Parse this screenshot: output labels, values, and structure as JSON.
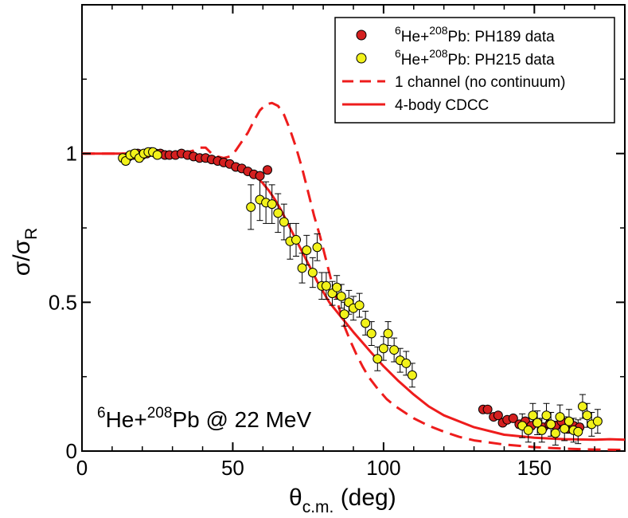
{
  "chart_data": {
    "type": "scatter",
    "title": "",
    "xlabel": "θc.m. (deg)",
    "ylabel": "σ/σR",
    "xlim": [
      0,
      180
    ],
    "ylim": [
      0,
      1.5
    ],
    "xticks": [
      {
        "value": 0,
        "label": "0"
      },
      {
        "value": 50,
        "label": "50"
      },
      {
        "value": 100,
        "label": "100"
      },
      {
        "value": 150,
        "label": "150"
      }
    ],
    "yticks": [
      {
        "value": 0,
        "label": "0"
      },
      {
        "value": 0.5,
        "label": "0.5"
      },
      {
        "value": 1,
        "label": "1"
      }
    ],
    "grid": false,
    "legend_position": "top-right",
    "legend": [
      {
        "kind": "marker",
        "prefix": "6",
        "mid": "He+",
        "sup": "208",
        "suffix": "Pb: PH189 data",
        "color": "#d42020"
      },
      {
        "kind": "marker",
        "prefix": "6",
        "mid": "He+",
        "sup": "208",
        "suffix": "Pb: PH215 data",
        "color": "#f2f21a"
      },
      {
        "kind": "dashed",
        "text": "1 channel (no continuum)",
        "color": "#ee1c1c"
      },
      {
        "kind": "solid",
        "text": "4-body CDCC",
        "color": "#ee1c1c"
      }
    ],
    "annotation": {
      "prefix": "6",
      "mid": "He+",
      "sup": "208",
      "suffix": "Pb @ 22 MeV"
    },
    "series": [
      {
        "name": "PH189 data",
        "kind": "points",
        "color": "#d42020",
        "points": [
          {
            "x": 15.5,
            "y": 0.99,
            "err": 0.006
          },
          {
            "x": 17,
            "y": 0.995,
            "err": 0.006
          },
          {
            "x": 18.5,
            "y": 1.0,
            "err": 0.006
          },
          {
            "x": 20,
            "y": 0.995,
            "err": 0.006
          },
          {
            "x": 21.5,
            "y": 1.0,
            "err": 0.006
          },
          {
            "x": 23,
            "y": 1.005,
            "err": 0.006
          },
          {
            "x": 24.5,
            "y": 1.0,
            "err": 0.006
          },
          {
            "x": 26,
            "y": 1.0,
            "err": 0.006
          },
          {
            "x": 27.5,
            "y": 0.995,
            "err": 0.006
          },
          {
            "x": 29,
            "y": 0.995,
            "err": 0.006
          },
          {
            "x": 31,
            "y": 0.995,
            "err": 0.006
          },
          {
            "x": 33,
            "y": 1.0,
            "err": 0.006
          },
          {
            "x": 35,
            "y": 0.995,
            "err": 0.006
          },
          {
            "x": 37,
            "y": 0.99,
            "err": 0.006
          },
          {
            "x": 39,
            "y": 0.985,
            "err": 0.006
          },
          {
            "x": 41,
            "y": 0.985,
            "err": 0.006
          },
          {
            "x": 43,
            "y": 0.98,
            "err": 0.006
          },
          {
            "x": 45,
            "y": 0.975,
            "err": 0.006
          },
          {
            "x": 47,
            "y": 0.97,
            "err": 0.006
          },
          {
            "x": 49,
            "y": 0.965,
            "err": 0.006
          },
          {
            "x": 51,
            "y": 0.955,
            "err": 0.006
          },
          {
            "x": 53,
            "y": 0.95,
            "err": 0.006
          },
          {
            "x": 55,
            "y": 0.94,
            "err": 0.006
          },
          {
            "x": 57,
            "y": 0.93,
            "err": 0.006
          },
          {
            "x": 59,
            "y": 0.925,
            "err": 0.006
          },
          {
            "x": 61.5,
            "y": 0.945,
            "err": 0.006
          },
          {
            "x": 133,
            "y": 0.14,
            "err": 0.006
          },
          {
            "x": 134.5,
            "y": 0.14,
            "err": 0.006
          },
          {
            "x": 136.5,
            "y": 0.115,
            "err": 0.008
          },
          {
            "x": 138,
            "y": 0.12,
            "err": 0.008
          },
          {
            "x": 139.5,
            "y": 0.095,
            "err": 0.01
          },
          {
            "x": 141,
            "y": 0.105,
            "err": 0.01
          },
          {
            "x": 143,
            "y": 0.11,
            "err": 0.01
          },
          {
            "x": 145,
            "y": 0.09,
            "err": 0.012
          },
          {
            "x": 147,
            "y": 0.1,
            "err": 0.012
          },
          {
            "x": 149,
            "y": 0.085,
            "err": 0.012
          },
          {
            "x": 151,
            "y": 0.095,
            "err": 0.012
          },
          {
            "x": 153,
            "y": 0.08,
            "err": 0.012
          },
          {
            "x": 155,
            "y": 0.09,
            "err": 0.012
          },
          {
            "x": 157,
            "y": 0.085,
            "err": 0.012
          },
          {
            "x": 159,
            "y": 0.1,
            "err": 0.012
          },
          {
            "x": 161,
            "y": 0.075,
            "err": 0.012
          },
          {
            "x": 163,
            "y": 0.085,
            "err": 0.012
          },
          {
            "x": 165,
            "y": 0.08,
            "err": 0.012
          }
        ]
      },
      {
        "name": "PH215 data",
        "kind": "points",
        "color": "#f2f21a",
        "points": [
          {
            "x": 13.5,
            "y": 0.985,
            "err": 0.012
          },
          {
            "x": 14.5,
            "y": 0.975,
            "err": 0.012
          },
          {
            "x": 16,
            "y": 0.995,
            "err": 0.012
          },
          {
            "x": 17.5,
            "y": 1.0,
            "err": 0.012
          },
          {
            "x": 19,
            "y": 0.985,
            "err": 0.012
          },
          {
            "x": 20.5,
            "y": 1.0,
            "err": 0.012
          },
          {
            "x": 22,
            "y": 1.005,
            "err": 0.012
          },
          {
            "x": 23.5,
            "y": 1.005,
            "err": 0.012
          },
          {
            "x": 25,
            "y": 0.995,
            "err": 0.012
          },
          {
            "x": 56,
            "y": 0.82,
            "err": 0.075
          },
          {
            "x": 59,
            "y": 0.845,
            "err": 0.07
          },
          {
            "x": 61,
            "y": 0.835,
            "err": 0.07
          },
          {
            "x": 63,
            "y": 0.83,
            "err": 0.065
          },
          {
            "x": 65,
            "y": 0.8,
            "err": 0.065
          },
          {
            "x": 67,
            "y": 0.77,
            "err": 0.06
          },
          {
            "x": 69,
            "y": 0.705,
            "err": 0.06
          },
          {
            "x": 71,
            "y": 0.71,
            "err": 0.055
          },
          {
            "x": 73,
            "y": 0.615,
            "err": 0.05
          },
          {
            "x": 74.5,
            "y": 0.675,
            "err": 0.05
          },
          {
            "x": 76.5,
            "y": 0.6,
            "err": 0.05
          },
          {
            "x": 78,
            "y": 0.685,
            "err": 0.045
          },
          {
            "x": 79.5,
            "y": 0.555,
            "err": 0.045
          },
          {
            "x": 81,
            "y": 0.555,
            "err": 0.045
          },
          {
            "x": 83,
            "y": 0.53,
            "err": 0.04
          },
          {
            "x": 84.5,
            "y": 0.55,
            "err": 0.04
          },
          {
            "x": 86,
            "y": 0.52,
            "err": 0.04
          },
          {
            "x": 87,
            "y": 0.46,
            "err": 0.04
          },
          {
            "x": 88.5,
            "y": 0.5,
            "err": 0.04
          },
          {
            "x": 90,
            "y": 0.48,
            "err": 0.04
          },
          {
            "x": 92,
            "y": 0.49,
            "err": 0.04
          },
          {
            "x": 94,
            "y": 0.43,
            "err": 0.04
          },
          {
            "x": 96,
            "y": 0.395,
            "err": 0.04
          },
          {
            "x": 98,
            "y": 0.31,
            "err": 0.04
          },
          {
            "x": 100,
            "y": 0.345,
            "err": 0.04
          },
          {
            "x": 101.5,
            "y": 0.395,
            "err": 0.04
          },
          {
            "x": 103.5,
            "y": 0.34,
            "err": 0.04
          },
          {
            "x": 105.5,
            "y": 0.305,
            "err": 0.04
          },
          {
            "x": 107.5,
            "y": 0.295,
            "err": 0.04
          },
          {
            "x": 109.5,
            "y": 0.255,
            "err": 0.04
          },
          {
            "x": 146,
            "y": 0.085,
            "err": 0.04
          },
          {
            "x": 148,
            "y": 0.07,
            "err": 0.04
          },
          {
            "x": 149.5,
            "y": 0.12,
            "err": 0.04
          },
          {
            "x": 151,
            "y": 0.095,
            "err": 0.04
          },
          {
            "x": 152.5,
            "y": 0.07,
            "err": 0.04
          },
          {
            "x": 154,
            "y": 0.12,
            "err": 0.04
          },
          {
            "x": 155.5,
            "y": 0.09,
            "err": 0.04
          },
          {
            "x": 157,
            "y": 0.06,
            "err": 0.04
          },
          {
            "x": 158.5,
            "y": 0.115,
            "err": 0.04
          },
          {
            "x": 160,
            "y": 0.075,
            "err": 0.04
          },
          {
            "x": 161.5,
            "y": 0.1,
            "err": 0.04
          },
          {
            "x": 163,
            "y": 0.07,
            "err": 0.04
          },
          {
            "x": 164.5,
            "y": 0.065,
            "err": 0.04
          },
          {
            "x": 166,
            "y": 0.15,
            "err": 0.04
          },
          {
            "x": 167.5,
            "y": 0.12,
            "err": 0.04
          },
          {
            "x": 169,
            "y": 0.09,
            "err": 0.04
          },
          {
            "x": 171,
            "y": 0.1,
            "err": 0.04
          }
        ]
      },
      {
        "name": "1 channel (no continuum)",
        "kind": "dashed",
        "color": "#ee1c1c",
        "x": [
          0,
          10,
          20,
          30,
          35,
          37,
          39,
          41,
          43,
          45,
          47,
          49,
          51,
          53,
          55,
          57,
          59,
          61,
          63,
          65,
          67,
          69,
          71,
          73,
          75,
          77,
          79,
          81,
          83,
          85,
          87,
          89,
          91,
          93,
          95,
          98,
          101,
          104,
          107,
          110,
          115,
          120,
          125,
          130,
          140,
          150,
          160,
          170,
          180
        ],
        "y": [
          1.0,
          1.0,
          1.0,
          1.0,
          1.005,
          1.01,
          1.02,
          1.02,
          1.0,
          0.99,
          0.985,
          0.99,
          1.01,
          1.04,
          1.07,
          1.11,
          1.145,
          1.165,
          1.17,
          1.16,
          1.13,
          1.08,
          1.02,
          0.95,
          0.87,
          0.79,
          0.72,
          0.64,
          0.56,
          0.49,
          0.42,
          0.37,
          0.325,
          0.285,
          0.25,
          0.21,
          0.175,
          0.15,
          0.13,
          0.11,
          0.085,
          0.065,
          0.048,
          0.036,
          0.022,
          0.013,
          0.008,
          0.005,
          0.004
        ]
      },
      {
        "name": "4-body CDCC",
        "kind": "solid",
        "color": "#ee1c1c",
        "x": [
          0,
          10,
          20,
          25,
          30,
          35,
          40,
          45,
          50,
          55,
          58,
          60,
          62,
          64,
          66,
          68,
          70,
          72,
          74,
          76,
          78,
          80,
          82,
          84,
          86,
          88,
          90,
          93,
          96,
          100,
          105,
          110,
          115,
          120,
          130,
          140,
          150,
          160,
          170,
          175,
          180
        ],
        "y": [
          1.0,
          1.0,
          1.0,
          1.0,
          0.995,
          0.99,
          0.98,
          0.97,
          0.955,
          0.935,
          0.92,
          0.9,
          0.875,
          0.845,
          0.81,
          0.77,
          0.73,
          0.69,
          0.65,
          0.61,
          0.57,
          0.535,
          0.5,
          0.475,
          0.45,
          0.425,
          0.4,
          0.365,
          0.33,
          0.285,
          0.235,
          0.19,
          0.15,
          0.12,
          0.08,
          0.055,
          0.045,
          0.04,
          0.038,
          0.04,
          0.038
        ]
      }
    ]
  }
}
